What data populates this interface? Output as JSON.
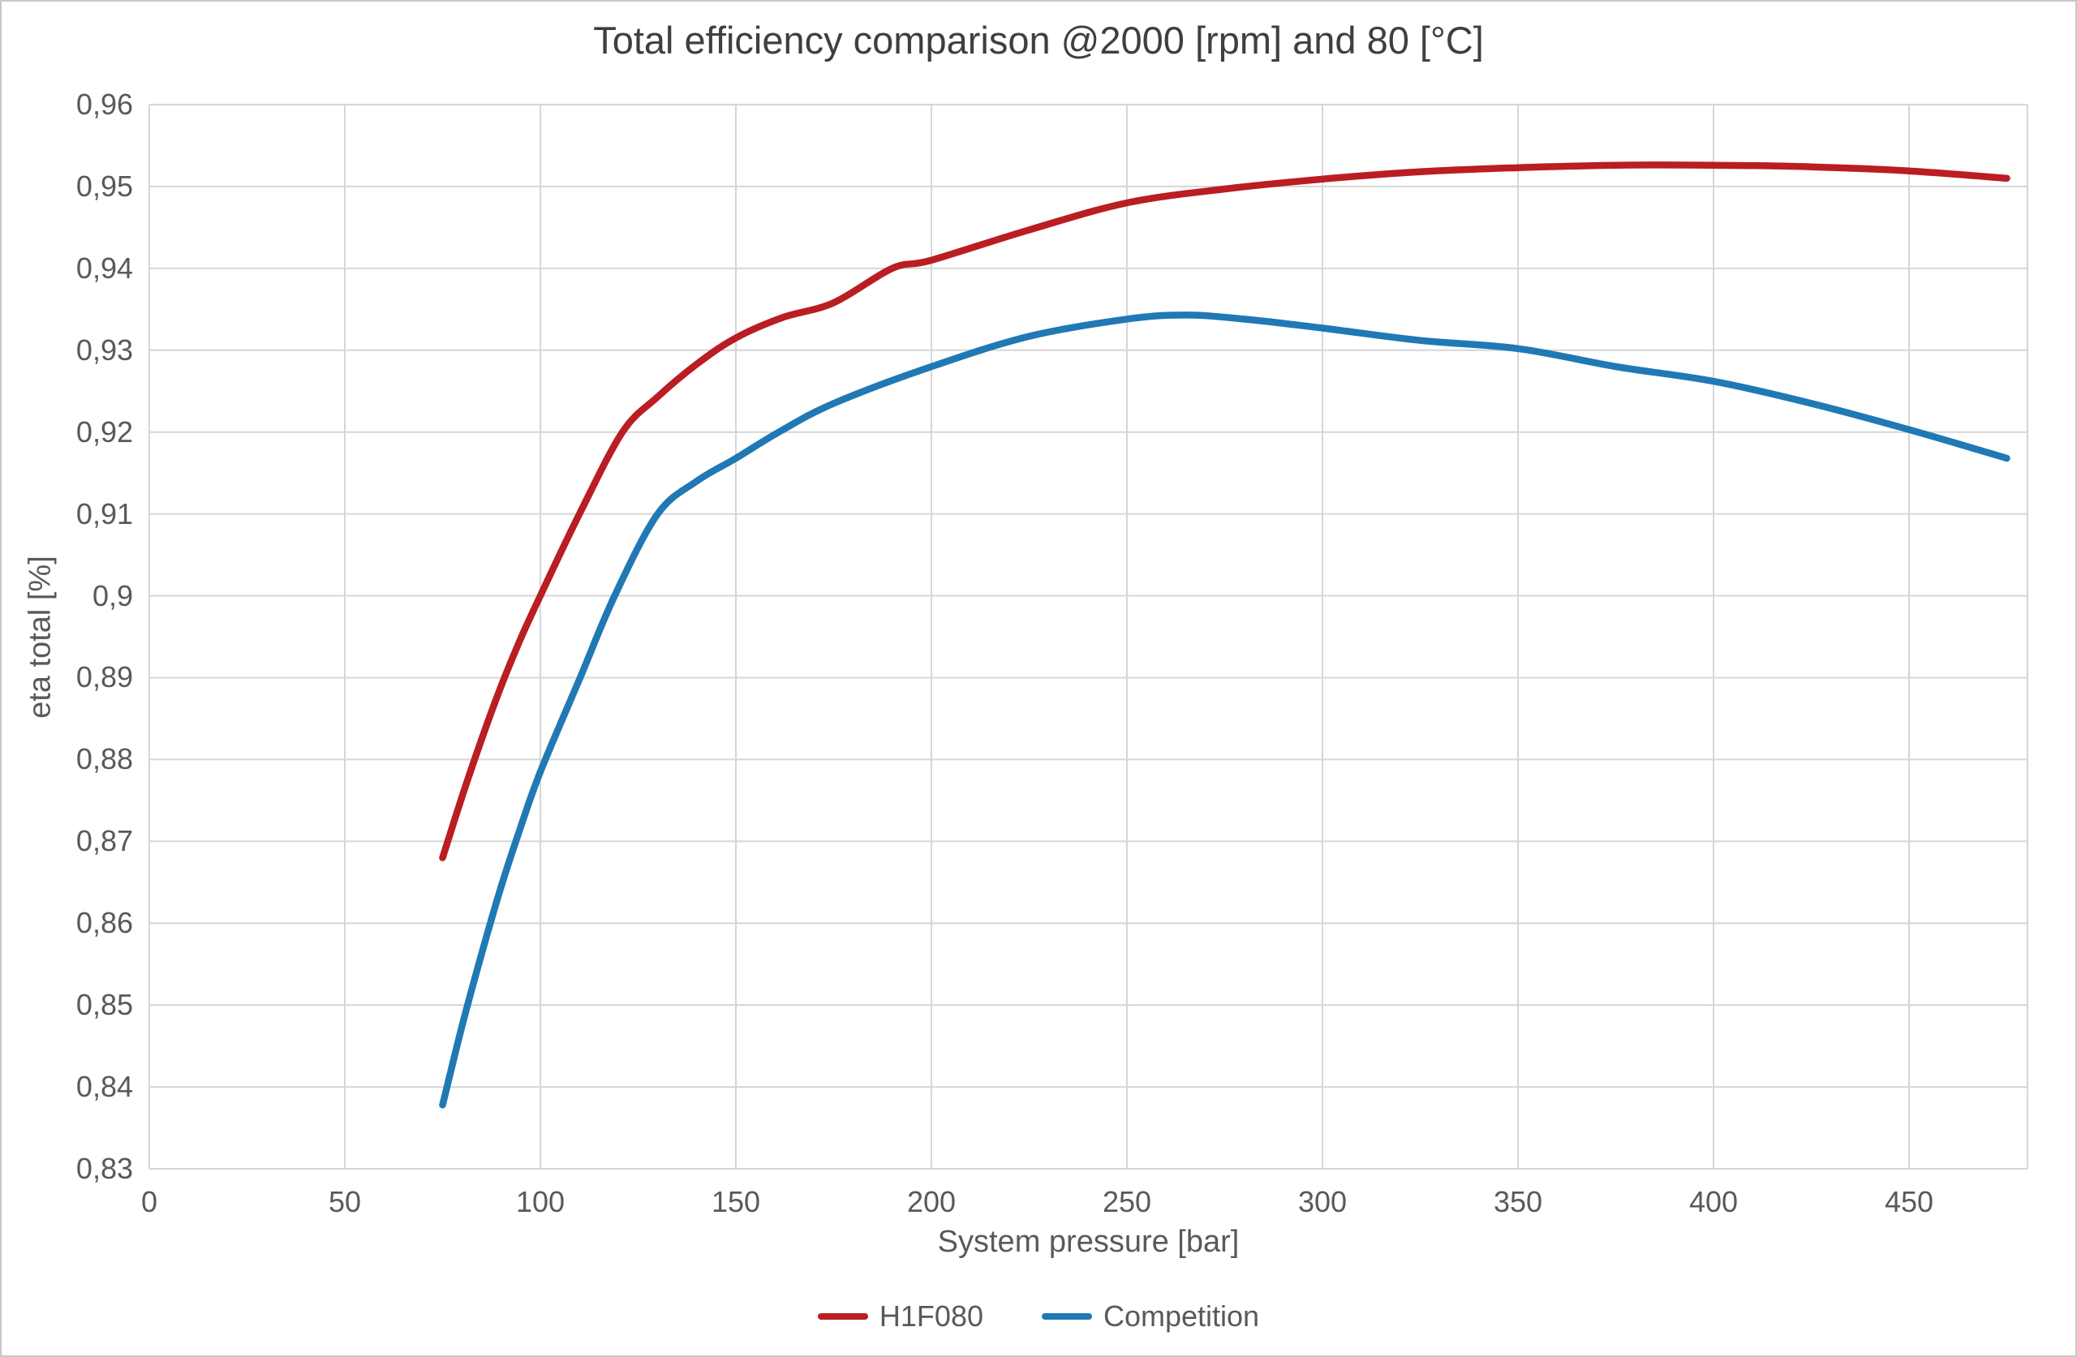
{
  "title": "Total efficiency comparison @2000 [rpm] and 80 [°C]",
  "axes": {
    "x": {
      "label": "System pressure [bar]",
      "tick_labels": [
        "0",
        "50",
        "100",
        "150",
        "200",
        "250",
        "300",
        "350",
        "400",
        "450"
      ],
      "tick_values": [
        0,
        50,
        100,
        150,
        200,
        250,
        300,
        350,
        400,
        450
      ],
      "min": 0,
      "max": 480
    },
    "y": {
      "label": "eta total [%]",
      "tick_labels": [
        "0,96",
        "0,95",
        "0,94",
        "0,93",
        "0,92",
        "0,91",
        "0,9",
        "0,89",
        "0,88",
        "0,87",
        "0,86",
        "0,85",
        "0,84",
        "0,83"
      ],
      "tick_values": [
        0.96,
        0.95,
        0.94,
        0.93,
        0.92,
        0.91,
        0.9,
        0.89,
        0.88,
        0.87,
        0.86,
        0.85,
        0.84,
        0.83
      ],
      "min": 0.83,
      "max": 0.96
    }
  },
  "legend": {
    "items": [
      {
        "label": "H1F080",
        "color": "#BA1D22"
      },
      {
        "label": "Competition",
        "color": "#2079B4"
      }
    ]
  },
  "chart_data": {
    "type": "line",
    "title": "Total efficiency comparison @2000 [rpm] and 80 [°C]",
    "xlabel": "System pressure [bar]",
    "ylabel": "eta total [%]",
    "xlim": [
      0,
      480
    ],
    "ylim": [
      0.83,
      0.96
    ],
    "grid": true,
    "legend_position": "bottom",
    "series": [
      {
        "name": "H1F080",
        "color": "#BA1D22",
        "points": [
          [
            75,
            0.868
          ],
          [
            80,
            0.8755
          ],
          [
            85,
            0.8825
          ],
          [
            90,
            0.889
          ],
          [
            95,
            0.8948
          ],
          [
            100,
            0.9
          ],
          [
            110,
            0.91
          ],
          [
            121,
            0.92
          ],
          [
            130,
            0.9243
          ],
          [
            140,
            0.9283
          ],
          [
            150,
            0.9315
          ],
          [
            162,
            0.934
          ],
          [
            175,
            0.9358
          ],
          [
            190,
            0.94
          ],
          [
            200,
            0.941
          ],
          [
            225,
            0.9447
          ],
          [
            250,
            0.948
          ],
          [
            275,
            0.9497
          ],
          [
            300,
            0.9509
          ],
          [
            325,
            0.9518
          ],
          [
            350,
            0.9523
          ],
          [
            375,
            0.9526
          ],
          [
            400,
            0.9526
          ],
          [
            425,
            0.9524
          ],
          [
            450,
            0.9519
          ],
          [
            475,
            0.951
          ]
        ]
      },
      {
        "name": "Competition",
        "color": "#2079B4",
        "points": [
          [
            75,
            0.8378
          ],
          [
            80,
            0.8475
          ],
          [
            85,
            0.8563
          ],
          [
            90,
            0.8645
          ],
          [
            95,
            0.8718
          ],
          [
            100,
            0.8785
          ],
          [
            110,
            0.8898
          ],
          [
            119,
            0.9
          ],
          [
            130,
            0.91
          ],
          [
            140,
            0.914
          ],
          [
            150,
            0.9168
          ],
          [
            161,
            0.92
          ],
          [
            175,
            0.9235
          ],
          [
            200,
            0.928
          ],
          [
            225,
            0.9317
          ],
          [
            250,
            0.9338
          ],
          [
            265,
            0.9343
          ],
          [
            280,
            0.9338
          ],
          [
            300,
            0.9327
          ],
          [
            325,
            0.9312
          ],
          [
            350,
            0.9302
          ],
          [
            375,
            0.928
          ],
          [
            400,
            0.9262
          ],
          [
            425,
            0.9235
          ],
          [
            450,
            0.9203
          ],
          [
            475,
            0.9168
          ]
        ]
      }
    ]
  },
  "colors": {
    "grid": "#D6D6D6",
    "plot_border": "#D6D6D6",
    "axis_text": "#595959",
    "title_text": "#3F3F3F",
    "background": "#FFFFFF",
    "page_border": "#C8C8C8"
  }
}
